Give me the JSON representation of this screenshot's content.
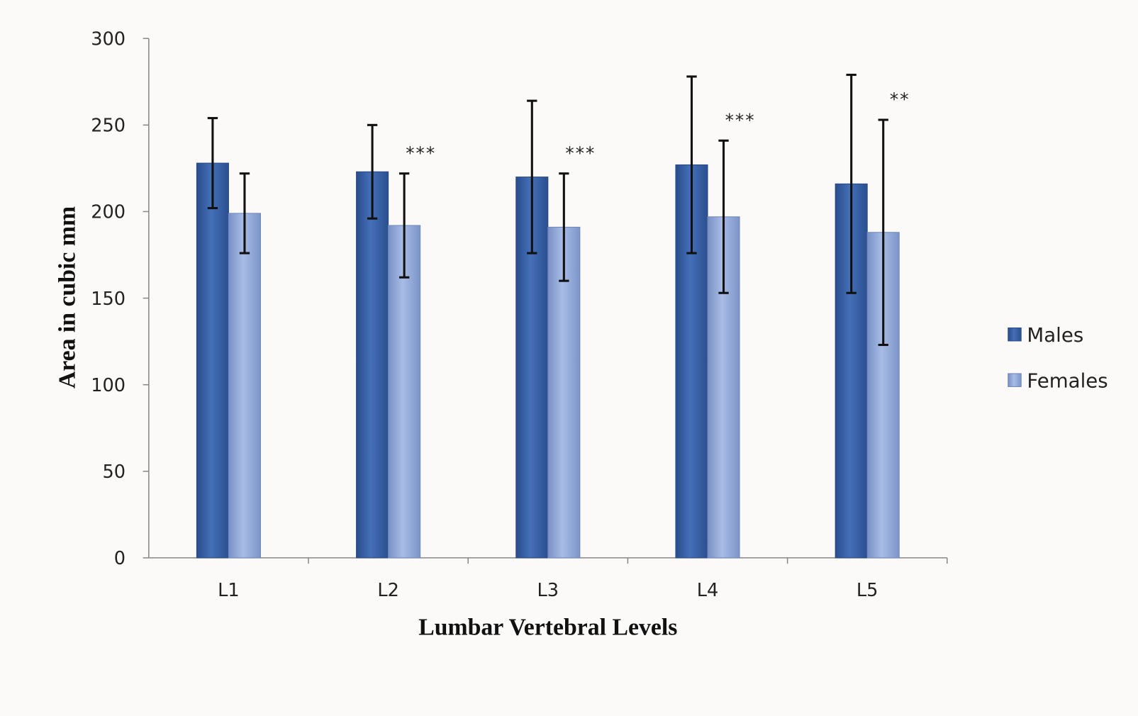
{
  "chart_data": {
    "type": "bar",
    "title": "",
    "xlabel": "Lumbar Vertebral Levels",
    "ylabel": "Area in cubic mm",
    "ylim": [
      0,
      300
    ],
    "yticks": [
      "0",
      "50",
      "100",
      "150",
      "200",
      "250",
      "300"
    ],
    "categories": [
      "L1",
      "L2",
      "L3",
      "L4",
      "L5"
    ],
    "series": [
      {
        "name": "Males",
        "color": "#3a62a8",
        "values": [
          228,
          223,
          220,
          227,
          216
        ],
        "errors": [
          26,
          27,
          44,
          51,
          63
        ]
      },
      {
        "name": "Females",
        "color": "#8ea6d6",
        "values": [
          199,
          192,
          191,
          197,
          188
        ],
        "errors": [
          23,
          30,
          31,
          44,
          65
        ]
      }
    ],
    "significance": [
      "",
      "***",
      "***",
      "***",
      "**"
    ],
    "legend_position": "right",
    "grid": false
  }
}
